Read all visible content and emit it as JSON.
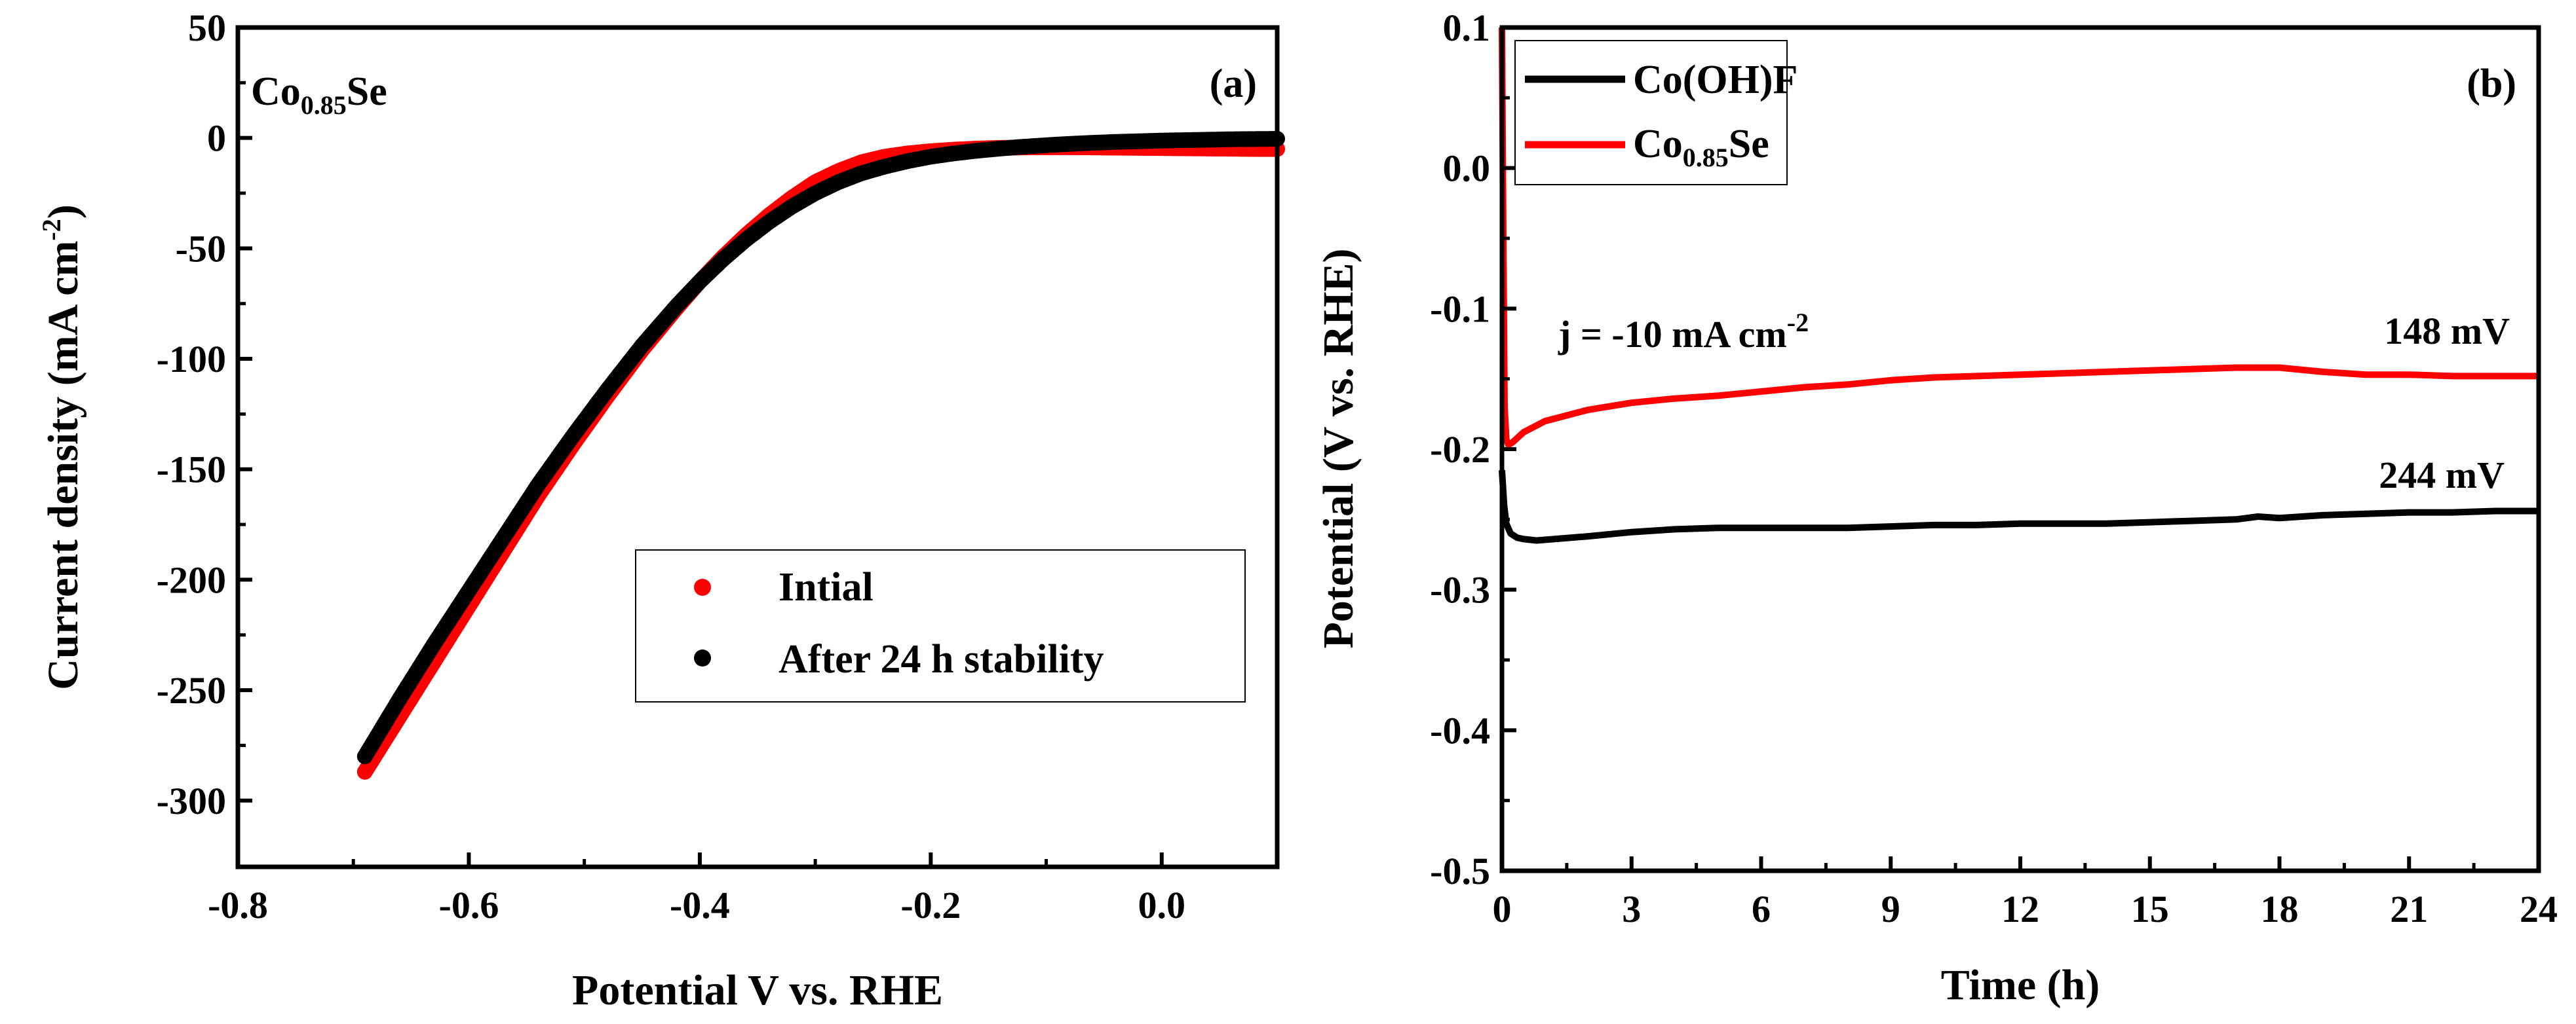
{
  "chart_data": [
    {
      "panel": "(a)",
      "type": "scatter",
      "sample_label": {
        "main": "Co",
        "sub": "0.85",
        "tail": "Se"
      },
      "xlabel": "Potential V vs. RHE",
      "ylabel": {
        "main": "Current density (mA cm",
        "sup": "-2",
        "tail": ")"
      },
      "xlim": [
        -0.8,
        0.1
      ],
      "ylim": [
        -330,
        50
      ],
      "x_ticks": [
        -0.8,
        -0.6,
        -0.4,
        -0.2,
        0.0
      ],
      "x_tick_labels": [
        "-0.8",
        "-0.6",
        "-0.4",
        "-0.2",
        "0.0"
      ],
      "y_ticks": [
        50,
        0,
        -50,
        -100,
        -150,
        -200,
        -250,
        -300
      ],
      "y_tick_labels": [
        "50",
        "0",
        "-50",
        "-100",
        "-150",
        "-200",
        "-250",
        "-300"
      ],
      "legend_position": "lower-right",
      "series": [
        {
          "name": "Intial",
          "color": "#ff0000",
          "x": [
            -0.69,
            -0.66,
            -0.63,
            -0.6,
            -0.57,
            -0.54,
            -0.51,
            -0.48,
            -0.45,
            -0.42,
            -0.4,
            -0.38,
            -0.36,
            -0.34,
            -0.32,
            -0.3,
            -0.28,
            -0.26,
            -0.24,
            -0.22,
            -0.2,
            -0.18,
            -0.16,
            -0.14,
            -0.12,
            -0.1,
            -0.08,
            -0.06,
            -0.04,
            -0.02,
            0.0,
            0.02,
            0.04,
            0.06,
            0.08,
            0.1
          ],
          "y": [
            -287,
            -262,
            -237,
            -212,
            -187,
            -162,
            -139,
            -117,
            -96,
            -77,
            -65,
            -54,
            -44,
            -35,
            -27,
            -20,
            -15,
            -11,
            -8.5,
            -7,
            -6,
            -5.3,
            -4.8,
            -4.5,
            -4.3,
            -4.2,
            -4.2,
            -4.3,
            -4.4,
            -4.5,
            -4.6,
            -4.7,
            -4.8,
            -4.9,
            -5,
            -5
          ]
        },
        {
          "name": "After 24 h stability",
          "color": "#000000",
          "x": [
            -0.69,
            -0.66,
            -0.63,
            -0.6,
            -0.57,
            -0.54,
            -0.51,
            -0.48,
            -0.45,
            -0.42,
            -0.4,
            -0.38,
            -0.36,
            -0.34,
            -0.32,
            -0.3,
            -0.28,
            -0.26,
            -0.24,
            -0.22,
            -0.2,
            -0.18,
            -0.16,
            -0.14,
            -0.12,
            -0.1,
            -0.08,
            -0.06,
            -0.04,
            -0.02,
            0.0,
            0.02,
            0.04,
            0.06,
            0.08,
            0.1
          ],
          "y": [
            -280,
            -254,
            -229,
            -205,
            -181,
            -157,
            -135,
            -114,
            -94,
            -76,
            -65,
            -55,
            -46,
            -38,
            -31,
            -25,
            -20,
            -16,
            -13,
            -10.5,
            -8.5,
            -7,
            -5.8,
            -4.8,
            -4,
            -3.3,
            -2.7,
            -2.2,
            -1.8,
            -1.5,
            -1.2,
            -1,
            -0.8,
            -0.6,
            -0.5,
            -0.4
          ]
        }
      ]
    },
    {
      "panel": "(b)",
      "type": "line",
      "xlabel": "Time (h)",
      "ylabel": "Potential (V vs. RHE)",
      "xlim": [
        0,
        24
      ],
      "ylim": [
        -0.5,
        0.1
      ],
      "x_ticks": [
        0,
        3,
        6,
        9,
        12,
        15,
        18,
        21,
        24
      ],
      "x_tick_labels": [
        "0",
        "3",
        "6",
        "9",
        "12",
        "15",
        "18",
        "21",
        "24"
      ],
      "y_ticks": [
        0.1,
        0.0,
        -0.1,
        -0.2,
        -0.3,
        -0.4,
        -0.5
      ],
      "y_tick_labels": [
        "0.1",
        "0.0",
        "-0.1",
        "-0.2",
        "-0.3",
        "-0.4",
        "-0.5"
      ],
      "legend_position": "top-left",
      "annotation": {
        "main": "j = -10 mA cm",
        "sup": "-2"
      },
      "series": [
        {
          "name": "Co(OH)F",
          "name_parts": {
            "main": "Co(OH)F",
            "sub": "",
            "tail": ""
          },
          "color": "#000000",
          "end_label": "244 mV",
          "x": [
            0,
            0.05,
            0.1,
            0.2,
            0.35,
            0.5,
            0.8,
            1.2,
            2,
            3,
            4,
            5,
            6,
            7,
            8,
            9,
            10,
            11,
            12,
            13,
            14,
            15,
            16,
            17,
            17.5,
            18,
            19,
            20,
            21,
            22,
            23,
            24
          ],
          "y": [
            -0.215,
            -0.24,
            -0.253,
            -0.26,
            -0.263,
            -0.264,
            -0.265,
            -0.264,
            -0.262,
            -0.259,
            -0.257,
            -0.256,
            -0.256,
            -0.256,
            -0.256,
            -0.255,
            -0.254,
            -0.254,
            -0.253,
            -0.253,
            -0.253,
            -0.252,
            -0.251,
            -0.25,
            -0.248,
            -0.249,
            -0.247,
            -0.246,
            -0.245,
            -0.245,
            -0.244,
            -0.244
          ]
        },
        {
          "name": "Co0.85Se",
          "name_parts": {
            "main": "Co",
            "sub": "0.85",
            "tail": "Se"
          },
          "color": "#ff0000",
          "end_label": "148 mV",
          "x": [
            0,
            0.03,
            0.06,
            0.1,
            0.15,
            0.25,
            0.5,
            1,
            2,
            3,
            4,
            5,
            6,
            7,
            8,
            9,
            10,
            11,
            12,
            13,
            14,
            15,
            16,
            17,
            18,
            19,
            20,
            21,
            22,
            23,
            24
          ],
          "y": [
            0.1,
            -0.05,
            -0.17,
            -0.193,
            -0.197,
            -0.195,
            -0.188,
            -0.18,
            -0.172,
            -0.167,
            -0.164,
            -0.162,
            -0.159,
            -0.156,
            -0.154,
            -0.151,
            -0.149,
            -0.148,
            -0.147,
            -0.146,
            -0.145,
            -0.144,
            -0.143,
            -0.142,
            -0.142,
            -0.145,
            -0.147,
            -0.147,
            -0.148,
            -0.148,
            -0.148
          ]
        }
      ]
    }
  ]
}
